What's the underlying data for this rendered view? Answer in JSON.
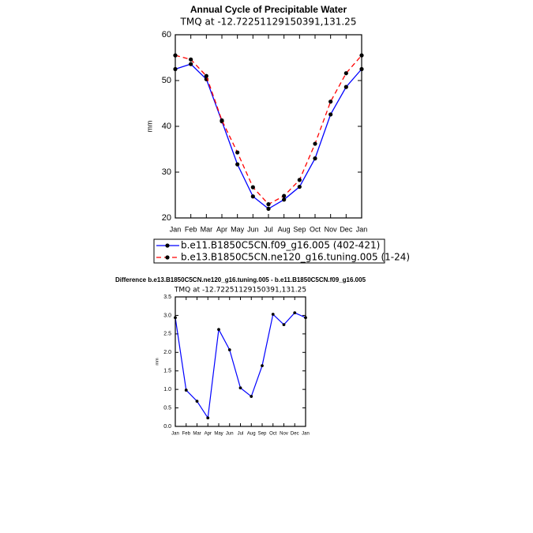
{
  "chart_data": [
    {
      "type": "line",
      "title": "Annual Cycle of Precipitable Water",
      "subtitle": "TMQ at -12.72251129150391,131.25",
      "y_label": "mm",
      "categories": [
        "Jan",
        "Feb",
        "Mar",
        "Apr",
        "May",
        "Jun",
        "Jul",
        "Aug",
        "Sep",
        "Oct",
        "Nov",
        "Dec",
        "Jan"
      ],
      "series": [
        {
          "name": "b.e11.B1850C5CN.f09_g16.005 (402-421)",
          "color": "#0000ff",
          "line_style": "solid",
          "marker_color": "#000000",
          "values": [
            52.5,
            53.6,
            50.3,
            41.1,
            31.7,
            24.7,
            22.0,
            24.0,
            26.8,
            33.0,
            42.6,
            48.6,
            52.5
          ]
        },
        {
          "name": "b.e13.B1850C5CN.ne120_g16.tuning.005 (1-24)",
          "color": "#ff0000",
          "line_style": "dashed",
          "marker_color": "#000000",
          "values": [
            55.5,
            54.6,
            51.0,
            41.3,
            34.3,
            26.7,
            23.0,
            24.8,
            28.3,
            36.2,
            45.4,
            51.6,
            55.5
          ]
        }
      ],
      "ylim": [
        20,
        60
      ],
      "yticks": [
        20,
        30,
        40,
        50,
        60
      ],
      "legend": "below"
    },
    {
      "type": "line",
      "title": "Difference b.e13.B1850C5CN.ne120_g16.tuning.005 - b.e11.B1850C5CN.f09_g16.005",
      "subtitle": "TMQ at -12.72251129150391,131.25",
      "y_label": "mm",
      "categories": [
        "Jan",
        "Feb",
        "Mar",
        "Apr",
        "May",
        "Jun",
        "Jul",
        "Aug",
        "Sep",
        "Oct",
        "Nov",
        "Dec",
        "Jan"
      ],
      "values": [
        2.94,
        0.98,
        0.68,
        0.23,
        2.62,
        2.07,
        1.04,
        0.81,
        1.64,
        3.03,
        2.75,
        3.07,
        2.94
      ],
      "color": "#0000ff",
      "line_style": "solid",
      "marker_color": "#000000",
      "ylim": [
        0,
        3.5
      ],
      "yticks": [
        {
          "value": 0,
          "label": "0.0"
        },
        0.5,
        {
          "value": 1,
          "label": "1.0"
        },
        1.5,
        {
          "value": 2,
          "label": "2.0"
        },
        2.5,
        {
          "value": 3,
          "label": "3.0"
        },
        3.5
      ]
    }
  ]
}
